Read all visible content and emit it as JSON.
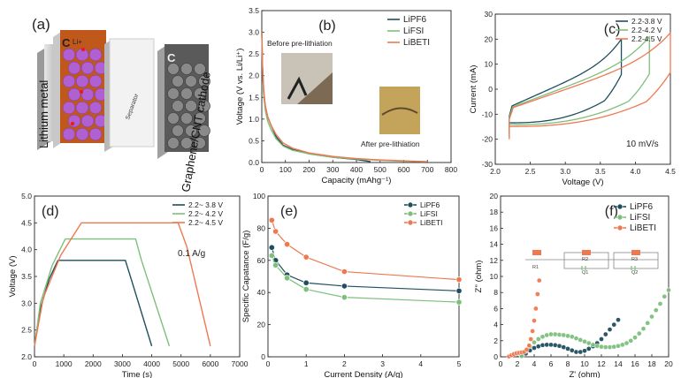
{
  "colors": {
    "c1": "#1f4e5f",
    "c2": "#7dc07d",
    "c3": "#f07850",
    "panel_a_cathode": "#c0571b",
    "panel_a_sphere": "#b060d0"
  },
  "panel_a": {
    "label": "(a)",
    "lithium_label": "Lithium metal",
    "separator_label": "Separator",
    "cathode_label": "Graphene/CNT cathode",
    "c_label_left": "C",
    "li_label": "Li+",
    "c_label_right": "C"
  },
  "chart_data": [
    {
      "id": "b",
      "type": "line",
      "label": "(b)",
      "xlabel": "Capacity (mAhg⁻¹)",
      "ylabel": "Voltage (V vs. Li/Li⁺)",
      "xlim": [
        0,
        800
      ],
      "ylim": [
        0,
        3.5
      ],
      "xticks": [
        0,
        100,
        200,
        300,
        400,
        500,
        600,
        700,
        800
      ],
      "yticks": [
        0.0,
        0.5,
        1.0,
        1.5,
        2.0,
        2.5,
        3.0,
        3.5
      ],
      "annotations": [
        "Before pre-lithiation",
        "After pre-lithiation"
      ],
      "legend_position": "top-right",
      "series": [
        {
          "name": "LiPF6",
          "color_key": "c1",
          "x": [
            0,
            3,
            8,
            15,
            25,
            40,
            60,
            90,
            130,
            200,
            300,
            400,
            460
          ],
          "y": [
            3.0,
            2.2,
            1.6,
            1.3,
            1.05,
            0.85,
            0.6,
            0.4,
            0.3,
            0.2,
            0.12,
            0.07,
            0.02
          ]
        },
        {
          "name": "LiFSI",
          "color_key": "c2",
          "x": [
            0,
            3,
            8,
            15,
            25,
            40,
            60,
            90,
            130,
            200,
            300,
            400,
            500,
            600,
            690
          ],
          "y": [
            3.0,
            2.2,
            1.55,
            1.2,
            0.95,
            0.75,
            0.55,
            0.38,
            0.28,
            0.2,
            0.12,
            0.08,
            0.05,
            0.03,
            0.02
          ]
        },
        {
          "name": "LiBETI",
          "color_key": "c3",
          "x": [
            0,
            3,
            8,
            15,
            25,
            40,
            60,
            90,
            130,
            200,
            300,
            400,
            500,
            600,
            700
          ],
          "y": [
            3.0,
            2.3,
            1.7,
            1.3,
            1.05,
            0.85,
            0.65,
            0.45,
            0.33,
            0.22,
            0.14,
            0.09,
            0.06,
            0.04,
            0.02
          ]
        }
      ]
    },
    {
      "id": "c",
      "type": "line",
      "label": "(c)",
      "xlabel": "Voltage (V)",
      "ylabel": "Current (mA)",
      "xlim": [
        2.0,
        4.5
      ],
      "ylim": [
        -30,
        30
      ],
      "xticks": [
        2.0,
        2.5,
        3.0,
        3.5,
        4.0,
        4.5
      ],
      "yticks": [
        -30,
        -20,
        -10,
        0,
        10,
        20,
        30
      ],
      "annotation": "10 mV/s",
      "legend_position": "top-right",
      "series": [
        {
          "name": "2.2-3.8 V",
          "color_key": "c1",
          "vmax": 3.8,
          "imax": 20,
          "imin": -18
        },
        {
          "name": "2.2-4.2 V",
          "color_key": "c2",
          "vmax": 4.2,
          "imax": 21,
          "imin": -19
        },
        {
          "name": "2.2-4.5 V",
          "color_key": "c3",
          "vmax": 4.5,
          "imax": 22.5,
          "imin": -20
        }
      ]
    },
    {
      "id": "d",
      "type": "line",
      "label": "(d)",
      "xlabel": "Time (s)",
      "ylabel": "Voltage (V)",
      "xlim": [
        0,
        7000
      ],
      "ylim": [
        2.0,
        5.0
      ],
      "xticks": [
        0,
        1000,
        2000,
        3000,
        4000,
        5000,
        6000,
        7000
      ],
      "yticks": [
        2.0,
        2.5,
        3.0,
        3.5,
        4.0,
        4.5,
        5.0
      ],
      "annotation": "0.1 A/g",
      "legend_position": "top-right",
      "series": [
        {
          "name": "2.2~ 3.8 V",
          "color_key": "c1",
          "x": [
            0,
            200,
            500,
            800,
            3100,
            3300,
            4000
          ],
          "y": [
            2.2,
            2.9,
            3.45,
            3.8,
            3.8,
            3.45,
            2.2
          ]
        },
        {
          "name": "2.2~ 4.2 V",
          "color_key": "c2",
          "x": [
            0,
            200,
            600,
            1050,
            3450,
            3650,
            4600
          ],
          "y": [
            2.2,
            3.0,
            3.7,
            4.2,
            4.2,
            3.8,
            2.2
          ]
        },
        {
          "name": "2.2~ 4.5 V",
          "color_key": "c3",
          "x": [
            0,
            300,
            900,
            1600,
            4900,
            5200,
            6000
          ],
          "y": [
            2.2,
            3.1,
            3.9,
            4.5,
            4.5,
            4.05,
            2.2
          ]
        }
      ]
    },
    {
      "id": "e",
      "type": "line",
      "label": "(e)",
      "xlabel": "Current Density (A/g)",
      "ylabel": "Specific Capatance (F/g)",
      "xlim": [
        0,
        5
      ],
      "ylim": [
        0,
        100
      ],
      "xticks": [
        0,
        1,
        2,
        3,
        4,
        5
      ],
      "yticks": [
        0,
        20,
        40,
        60,
        80,
        100
      ],
      "legend_position": "top-right",
      "series": [
        {
          "name": "LiPF6",
          "color_key": "c1",
          "x": [
            0.1,
            0.2,
            0.5,
            1,
            2,
            5
          ],
          "y": [
            68,
            60,
            51,
            46,
            44,
            41
          ]
        },
        {
          "name": "LiFSI",
          "color_key": "c2",
          "x": [
            0.1,
            0.2,
            0.5,
            1,
            2,
            5
          ],
          "y": [
            63,
            57,
            49,
            42,
            37,
            34
          ]
        },
        {
          "name": "LiBETI",
          "color_key": "c3",
          "x": [
            0.1,
            0.2,
            0.5,
            1,
            2,
            5
          ],
          "y": [
            85,
            78,
            70,
            62,
            53,
            48
          ]
        }
      ]
    },
    {
      "id": "f",
      "type": "scatter",
      "label": "(f)",
      "xlabel": "Z' (ohm)",
      "ylabel": "Z'' (ohm)",
      "xlim": [
        0,
        20
      ],
      "ylim": [
        0,
        20
      ],
      "xticks": [
        0,
        2,
        4,
        6,
        8,
        10,
        12,
        14,
        16,
        18,
        20
      ],
      "yticks": [
        0,
        2,
        4,
        6,
        8,
        10,
        12,
        14,
        16,
        18,
        20
      ],
      "legend_position": "top-right",
      "circuit_labels": [
        "R1",
        "R2",
        "R3",
        "Q1",
        "Q2"
      ],
      "series": [
        {
          "name": "LiPF6",
          "color_key": "c1",
          "x": [
            2.5,
            3.0,
            3.5,
            4.0,
            4.5,
            5.0,
            5.5,
            6.0,
            6.5,
            7.0,
            7.5,
            8.0,
            8.5,
            9.0,
            9.5,
            10.0,
            10.5,
            11.0,
            11.5,
            12.0,
            12.5,
            13.0,
            13.5,
            14.0
          ],
          "y": [
            0.1,
            0.4,
            0.8,
            1.1,
            1.3,
            1.45,
            1.5,
            1.5,
            1.45,
            1.35,
            1.2,
            1.0,
            0.8,
            0.6,
            0.6,
            0.75,
            1.0,
            1.3,
            1.7,
            2.2,
            2.8,
            3.4,
            4.0,
            4.6
          ]
        },
        {
          "name": "LiFSI",
          "color_key": "c2",
          "x": [
            2.5,
            3.0,
            3.5,
            4.0,
            4.5,
            5.0,
            5.5,
            6.0,
            6.5,
            7.0,
            7.5,
            8.0,
            8.5,
            9.0,
            9.5,
            10.0,
            10.5,
            11.0,
            11.5,
            12.0,
            12.5,
            13.0,
            13.5,
            14.0,
            14.5,
            15.0,
            15.5,
            16.0,
            16.5,
            17.0,
            17.5,
            18.0,
            18.5,
            19.0,
            19.5,
            20.0
          ],
          "y": [
            0.1,
            0.7,
            1.3,
            1.8,
            2.2,
            2.5,
            2.7,
            2.8,
            2.8,
            2.75,
            2.7,
            2.6,
            2.5,
            2.3,
            2.1,
            1.9,
            1.7,
            1.5,
            1.35,
            1.25,
            1.2,
            1.2,
            1.25,
            1.35,
            1.5,
            1.7,
            2.0,
            2.4,
            2.9,
            3.5,
            4.2,
            5.0,
            5.8,
            6.6,
            7.5,
            8.3
          ]
        },
        {
          "name": "LiBETI",
          "color_key": "c3",
          "x": [
            1.0,
            1.3,
            1.6,
            1.9,
            2.2,
            2.5,
            2.8,
            3.1,
            3.4,
            3.6,
            3.8,
            4.0,
            4.2,
            4.4,
            4.6
          ],
          "y": [
            0.05,
            0.2,
            0.35,
            0.45,
            0.5,
            0.55,
            0.6,
            0.9,
            1.4,
            2.2,
            3.2,
            4.5,
            6.0,
            7.8,
            9.5
          ]
        }
      ]
    }
  ]
}
